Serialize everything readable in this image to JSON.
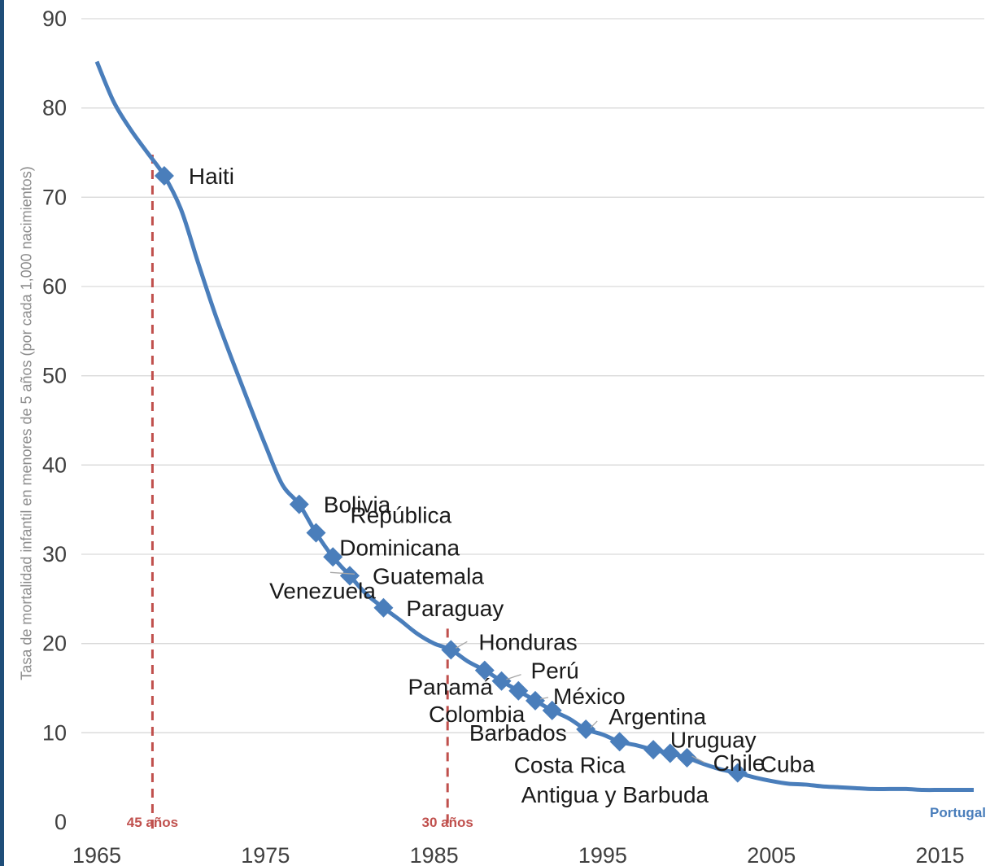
{
  "chart_data": {
    "type": "line",
    "title": "",
    "xlabel": "",
    "ylabel": "Tasa de mortalidad infantil en menores de 5 años (por cada 1,000 nacimientos)",
    "xlim": [
      1965,
      2017
    ],
    "ylim": [
      0,
      90
    ],
    "x_ticks": [
      1965,
      1975,
      1985,
      1995,
      2005,
      2015
    ],
    "y_ticks": [
      0,
      10,
      20,
      30,
      40,
      50,
      60,
      70,
      80,
      90
    ],
    "grid": true,
    "colors": {
      "line": "#4a7ebb",
      "marker": "#4a7ebb",
      "guide": "#c0504d",
      "grid": "#d9d9d9",
      "axis_text": "#404040",
      "ylabel": "#8c8c8c",
      "end_label": "#4a7ebb"
    },
    "series": [
      {
        "x": [
          1965,
          1966,
          1967,
          1968,
          1969,
          1970,
          1971,
          1972,
          1973,
          1974,
          1975,
          1976,
          1977,
          1978,
          1979,
          1980,
          1981,
          1982,
          1983,
          1984,
          1985,
          1986,
          1987,
          1988,
          1989,
          1990,
          1991,
          1992,
          1993,
          1994,
          1995,
          1996,
          1997,
          1998,
          1999,
          2000,
          2001,
          2002,
          2003,
          2004,
          2005,
          2006,
          2007,
          2008,
          2009,
          2010,
          2011,
          2012,
          2013,
          2014,
          2015,
          2016,
          2017
        ],
        "y": [
          85.2,
          80.7,
          77.6,
          75.0,
          72.4,
          68.6,
          62.7,
          57.0,
          51.9,
          47.0,
          42.2,
          37.8,
          35.6,
          32.4,
          29.7,
          27.6,
          25.5,
          24.0,
          22.6,
          21.1,
          20.0,
          19.3,
          18.0,
          17.0,
          15.8,
          14.7,
          13.6,
          12.5,
          11.6,
          10.4,
          9.8,
          9.0,
          8.6,
          8.1,
          7.7,
          7.2,
          6.5,
          5.9,
          5.5,
          5.0,
          4.6,
          4.3,
          4.2,
          4.0,
          3.9,
          3.8,
          3.7,
          3.7,
          3.7,
          3.6,
          3.6,
          3.6,
          3.6
        ]
      }
    ],
    "points": [
      {
        "label": "Haiti",
        "x": 1969,
        "y": 72.4
      },
      {
        "label": "Bolivia",
        "x": 1977,
        "y": 35.6
      },
      {
        "label": "República",
        "x": 1978,
        "y": 32.4
      },
      {
        "label": "Dominicana",
        "x": 1979,
        "y": 29.7
      },
      {
        "label": "Venezuela",
        "x": 1980,
        "y": 27.6
      },
      {
        "label": "Guatemala",
        "x": 1980,
        "y": 27.6
      },
      {
        "label": "Paraguay",
        "x": 1982,
        "y": 24.0
      },
      {
        "label": "Honduras",
        "x": 1986,
        "y": 19.3
      },
      {
        "label": "Panamá",
        "x": 1988,
        "y": 17.0
      },
      {
        "label": "Perú",
        "x": 1989,
        "y": 15.8
      },
      {
        "label": "Colombia",
        "x": 1990,
        "y": 14.7
      },
      {
        "label": "México",
        "x": 1991,
        "y": 13.6
      },
      {
        "label": "Barbados",
        "x": 1992,
        "y": 12.5
      },
      {
        "label": "Argentina",
        "x": 1994,
        "y": 10.4
      },
      {
        "label": "Costa Rica",
        "x": 1996,
        "y": 9.0
      },
      {
        "label": "Antigua y Barbuda",
        "x": 1998,
        "y": 8.1
      },
      {
        "label": "Uruguay",
        "x": 1999,
        "y": 7.7
      },
      {
        "label": "Chile",
        "x": 2000,
        "y": 7.2
      },
      {
        "label": "Cuba",
        "x": 2003,
        "y": 5.5
      }
    ],
    "end_label": {
      "label": "Portugal",
      "x": 2017,
      "y": 3.6
    },
    "guides": [
      {
        "x": 1968.3,
        "y_top": 72.4,
        "label": "45 años"
      },
      {
        "x": 1985.8,
        "y_top": 19.3,
        "label": "30 años"
      }
    ]
  }
}
